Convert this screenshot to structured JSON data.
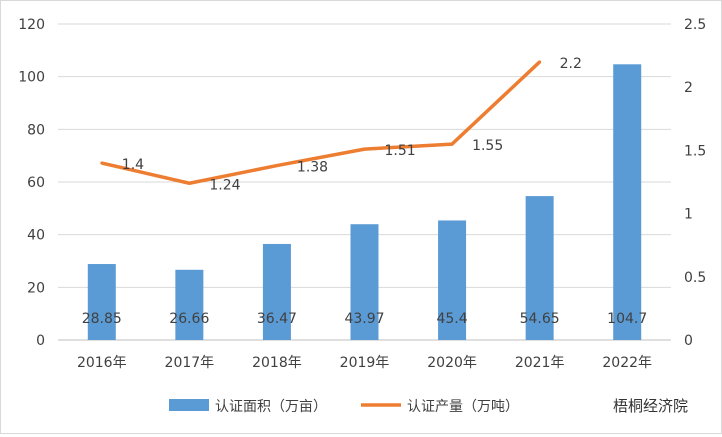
{
  "chart_data": {
    "type": "bar+line",
    "categories": [
      "2016年",
      "2017年",
      "2018年",
      "2019年",
      "2020年",
      "2021年",
      "2022年"
    ],
    "series": [
      {
        "name": "认证面积（万亩）",
        "type": "bar",
        "axis": "left",
        "color": "#5B9BD5",
        "values": [
          28.85,
          26.66,
          36.47,
          43.97,
          45.4,
          54.65,
          104.7
        ],
        "labels": [
          "28.85",
          "26.66",
          "36.47",
          "43.97",
          "45.4",
          "54.65",
          "104.7"
        ]
      },
      {
        "name": "认证产量（万吨）",
        "type": "line",
        "axis": "right",
        "color": "#ED7D31",
        "values": [
          1.4,
          1.24,
          1.38,
          1.51,
          1.55,
          2.2,
          null
        ],
        "labels": [
          "1.4",
          "1.24",
          "1.38",
          "1.51",
          "1.55",
          "2.2",
          ""
        ]
      }
    ],
    "left_axis": {
      "ylim": [
        0,
        120
      ],
      "ticks": [
        "0",
        "20",
        "40",
        "60",
        "80",
        "100",
        "120"
      ]
    },
    "right_axis": {
      "ylim": [
        0,
        2.5
      ],
      "ticks": [
        "0",
        "0.5",
        "1",
        "1.5",
        "2",
        "2.5"
      ]
    },
    "grid": true,
    "legend": "bottom"
  },
  "watermark": "梧桐经济院"
}
